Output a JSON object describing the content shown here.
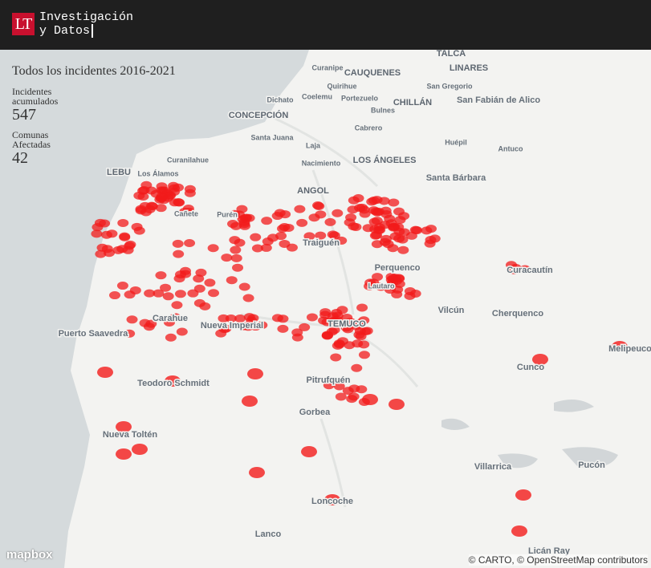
{
  "header": {
    "logo": "LT",
    "title_line1": "Investigación",
    "title_line2": "y Datos"
  },
  "panel": {
    "title": "Todos los incidentes 2016-2021",
    "stats": [
      {
        "label": "Incidentes acumulados",
        "value": "547"
      },
      {
        "label": "Comunas Afectadas",
        "value": "42"
      }
    ]
  },
  "map": {
    "labels": [
      "TALCA",
      "Curanipe",
      "CAUQUENES",
      "LINARES",
      "Quirihue",
      "San Gregorio",
      "Dichato",
      "Coelemu",
      "Portezuelo",
      "CHILLÁN",
      "San Fabián de Alico",
      "CONCEPCIÓN",
      "Bulnes",
      "Cabrero",
      "Santa Juana",
      "Huépil",
      "Laja",
      "Curanilahue",
      "Antuco",
      "Nacimiento",
      "LOS ÁNGELES",
      "LEBU",
      "Los Álamos",
      "Santa Bárbara",
      "ANGOL",
      "Cañete",
      "Purén",
      "Traiguén",
      "Perquenco",
      "Curacautín",
      "Lautaro",
      "Vilcún",
      "Cherquenco",
      "Carahue",
      "Puerto Saavedra",
      "Nueva Imperial",
      "TEMUCO",
      "Melipeuco",
      "Cunco",
      "Teodoro Schmidt",
      "Pitrufquén",
      "Gorbea",
      "Nueva Toltén",
      "Villarrica",
      "Pucón",
      "Loncoche",
      "Lanco",
      "Licán Ray"
    ],
    "logo": "mapbox",
    "attribution": "© CARTO, © OpenStreetMap contributors"
  }
}
